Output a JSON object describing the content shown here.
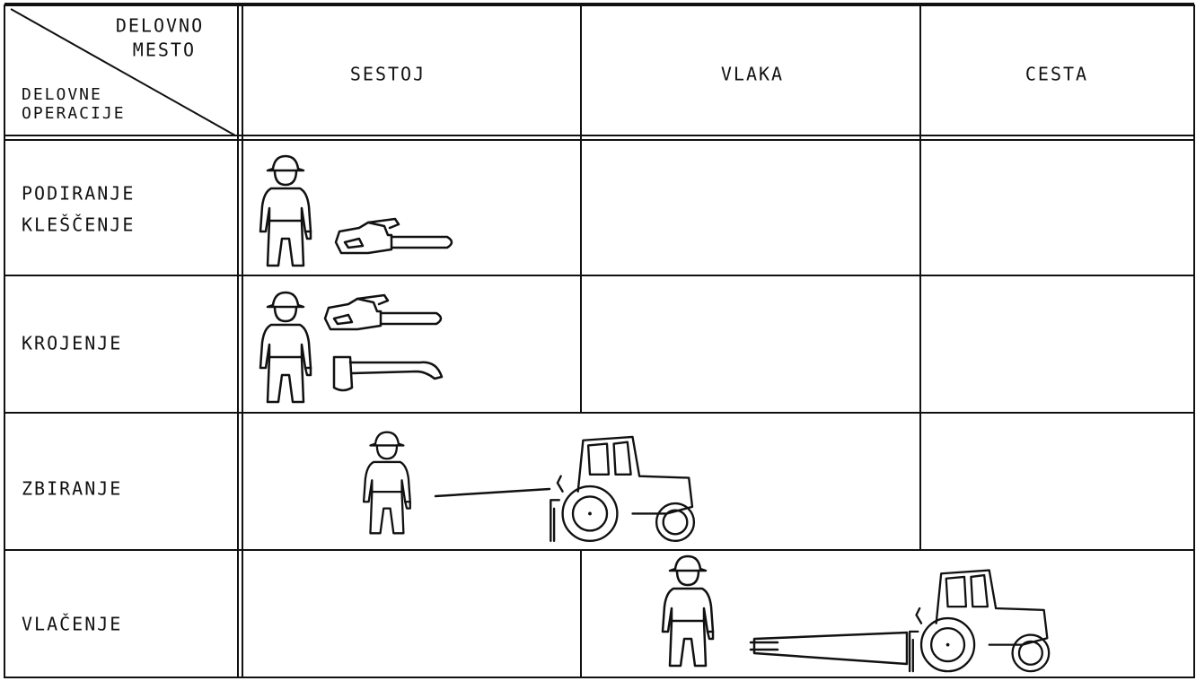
{
  "table": {
    "corner": {
      "top": [
        "DELOVNO",
        "MESTO"
      ],
      "bottom": [
        "DELOVNE",
        "OPERACIJE"
      ]
    },
    "columns": [
      "SESTOJ",
      "VLAKA",
      "CESTA"
    ],
    "rows": [
      [
        "PODIRANJE",
        "KLEŠČENJE"
      ],
      [
        "KROJENJE"
      ],
      [
        "ZBIRANJE"
      ],
      [
        "VLAČENJE"
      ]
    ]
  }
}
